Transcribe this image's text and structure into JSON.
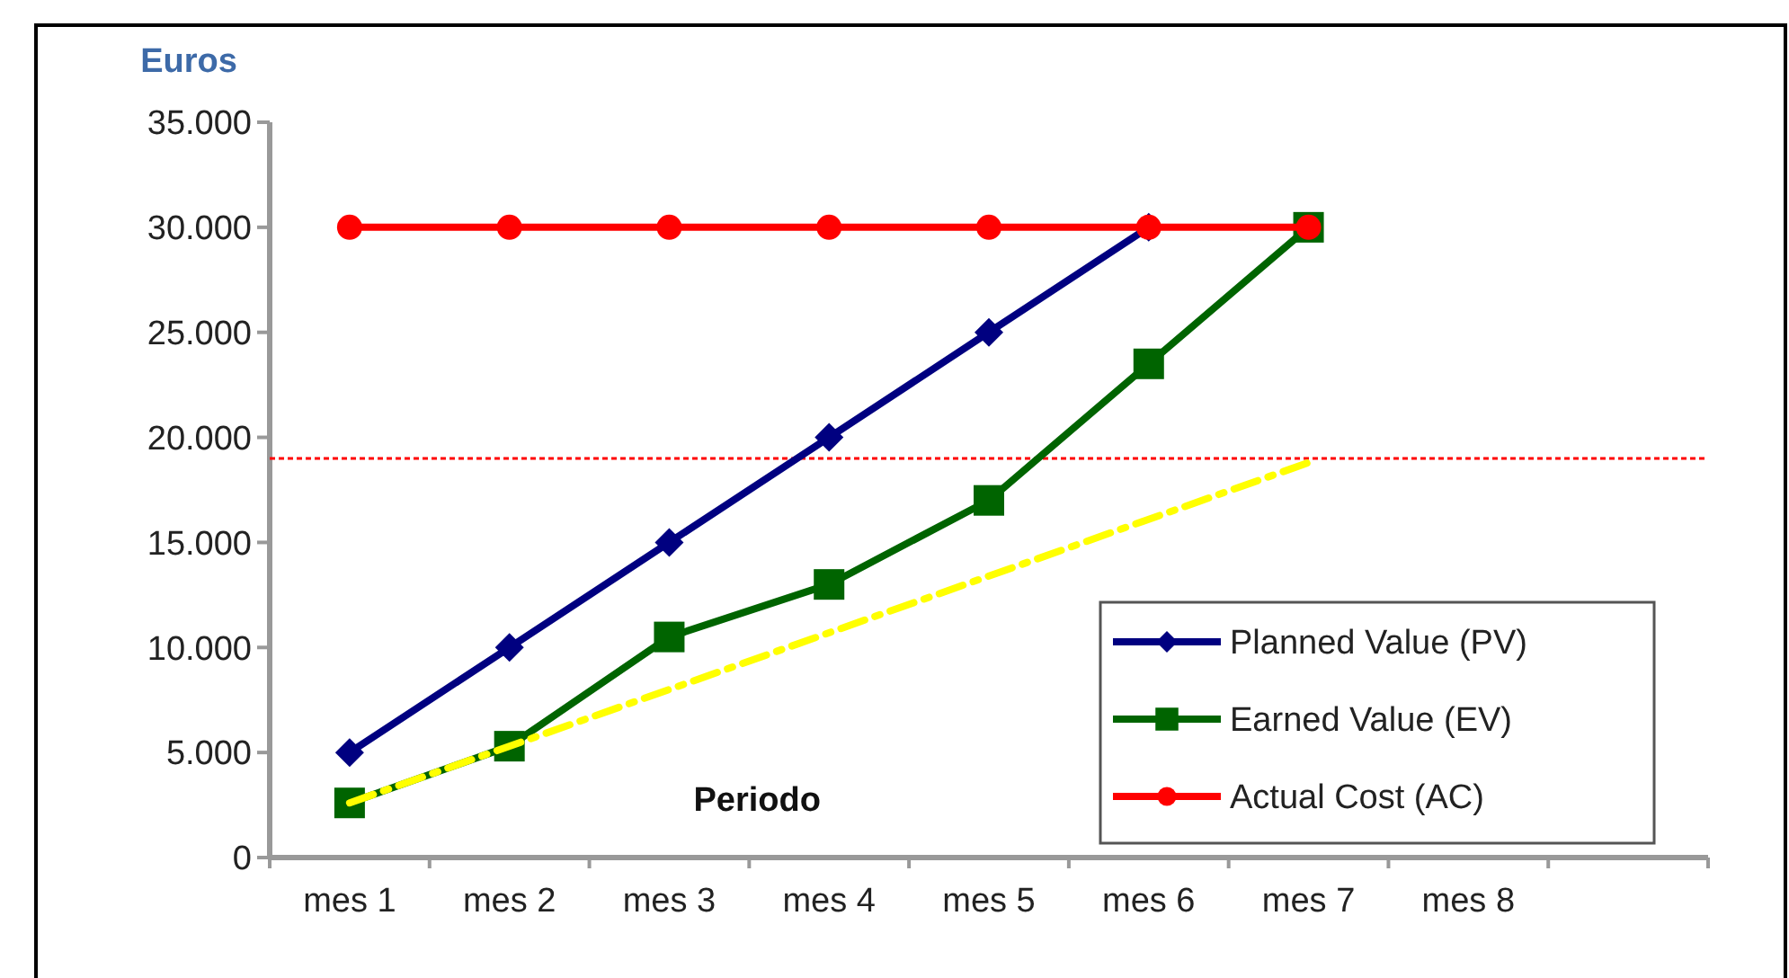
{
  "chart_data": {
    "type": "line",
    "ylabel": "Euros",
    "xlabel": "Periodo",
    "categories": [
      "mes 1",
      "mes 2",
      "mes 3",
      "mes 4",
      "mes 5",
      "mes 6",
      "mes 7",
      "mes 8",
      null
    ],
    "series": [
      {
        "name": "Planned Value (PV)",
        "color": "#000080",
        "marker": "diamond",
        "values": [
          5000,
          10000,
          15000,
          20000,
          25000,
          30000,
          null,
          null,
          null
        ]
      },
      {
        "name": "Earned Value (EV)",
        "color": "#006400",
        "marker": "square",
        "values": [
          2600,
          5300,
          10500,
          13000,
          17000,
          23500,
          30000,
          null,
          null
        ]
      },
      {
        "name": "Actual Cost (AC)",
        "color": "#ff0000",
        "marker": "circle",
        "values": [
          30000,
          30000,
          30000,
          30000,
          30000,
          30000,
          30000,
          null,
          null
        ]
      },
      {
        "color": "#ffff00",
        "marker": "none",
        "line_style": "dashed",
        "x": [
          "mes 1",
          "mes 7"
        ],
        "values": [
          2600,
          18800
        ]
      }
    ],
    "ref_lines": [
      {
        "axis": "y",
        "value": 19000,
        "color": "#ff0000",
        "line_style": "dotted"
      }
    ],
    "ylim": [
      0,
      35000
    ],
    "yticks": [
      {
        "value": 0,
        "label": "0"
      },
      {
        "value": 5000,
        "label": "5.000"
      },
      {
        "value": 10000,
        "label": "10.000"
      },
      {
        "value": 15000,
        "label": "15.000"
      },
      {
        "value": 20000,
        "label": "20.000"
      },
      {
        "value": 25000,
        "label": "25.000"
      },
      {
        "value": 30000,
        "label": "30.000"
      },
      {
        "value": 35000,
        "label": "35.000"
      }
    ],
    "grid": false,
    "legend": "bottom right"
  }
}
